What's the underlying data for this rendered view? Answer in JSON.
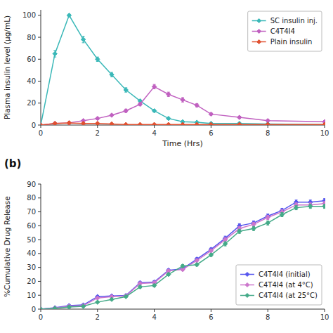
{
  "chart_data": [
    {
      "type": "line",
      "xlabel": "Time (Hrs)",
      "ylabel": "Plasma insulin level (μg/mL)",
      "x": [
        0,
        0.5,
        1.0,
        1.5,
        2.0,
        2.5,
        3.0,
        3.5,
        4.0,
        4.5,
        5.0,
        5.5,
        6.0,
        7.0,
        8.0,
        10.0
      ],
      "series": [
        {
          "name": "SC insulin inj.",
          "color": "#3ab8b8",
          "marker": "diamond",
          "line_style": "solid",
          "values": [
            0,
            65,
            100,
            78,
            60,
            46,
            32,
            22,
            13,
            6,
            3,
            2.5,
            1.5,
            1.5,
            1.0,
            0.5
          ],
          "errors": [
            0,
            3,
            1,
            3,
            2,
            2,
            2,
            1,
            1,
            1,
            0.5,
            0.5,
            0.5,
            0.5,
            0.5,
            0.5
          ]
        },
        {
          "name": "C4T4I4",
          "color": "#c060c0",
          "marker": "diamond",
          "line_style": "solid",
          "values": [
            0,
            1.5,
            2,
            4,
            6,
            9,
            13,
            19,
            35,
            28,
            23,
            18,
            10,
            7,
            4,
            3
          ],
          "errors": [
            0,
            0.5,
            0.5,
            0.5,
            1,
            1,
            1.5,
            1.5,
            2,
            2,
            2,
            1.5,
            1,
            1,
            1,
            0.5
          ]
        },
        {
          "name": "Plain insulin",
          "color": "#e05030",
          "marker": "diamond",
          "line_style": "solid",
          "values": [
            0,
            1.5,
            2,
            1.5,
            1.5,
            1,
            0.5,
            0.5,
            0.5,
            0.5,
            0.5,
            0.5,
            0.5,
            0.5,
            0.5,
            0.5
          ],
          "errors": [
            0,
            0.5,
            0.5,
            0.5,
            0.5,
            0.3,
            0.3,
            0.3,
            0.3,
            0.3,
            0.3,
            0.3,
            0.3,
            0.3,
            0.3,
            0.3
          ]
        }
      ],
      "xlim": [
        0,
        10
      ],
      "ylim": [
        0,
        105
      ],
      "xticks": [
        0,
        2,
        4,
        6,
        8,
        10
      ],
      "yticks": [
        0,
        20,
        40,
        60,
        80,
        100
      ],
      "grid": false,
      "legend": "upper right"
    },
    {
      "type": "line",
      "ylabel": "%Cumulative Drug Release",
      "annotations": [
        "(b)"
      ],
      "x": [
        0,
        0.5,
        1,
        1.5,
        2,
        2.5,
        3,
        3.5,
        4,
        4.5,
        5,
        5.5,
        6,
        6.5,
        7,
        7.5,
        8,
        8.5,
        9,
        9.5,
        10
      ],
      "series": [
        {
          "name": "C4T4I4 (initial)",
          "color": "#5555ee",
          "marker": "diamond",
          "line_style": "solid",
          "values": [
            0,
            1,
            2.5,
            3,
            9,
            9.5,
            9.8,
            19,
            19.5,
            28,
            29,
            36,
            43,
            51,
            60,
            62,
            67,
            71,
            77,
            77,
            78
          ],
          "errors": [
            0,
            0.3,
            0.4,
            0.4,
            0.5,
            0.5,
            0.5,
            1,
            1,
            1,
            1,
            1,
            1,
            1.5,
            1.5,
            1.5,
            1.5,
            1.5,
            1.5,
            1.5,
            1.5
          ]
        },
        {
          "name": "C4T4I4 (at 4°C)",
          "color": "#cc77cc",
          "marker": "diamond",
          "line_style": "solid",
          "values": [
            0,
            0.8,
            2,
            2.5,
            8,
            9,
            9.5,
            18.5,
            19,
            27.5,
            28.5,
            35,
            42,
            50,
            58,
            61,
            66,
            70,
            75,
            75,
            76
          ],
          "errors": [
            0,
            0.3,
            0.4,
            0.4,
            0.5,
            0.5,
            0.5,
            1,
            1,
            1,
            1,
            1,
            1,
            1.5,
            1.5,
            1.5,
            1.5,
            1.5,
            1.5,
            1.5,
            1.5
          ]
        },
        {
          "name": "C4T4I4 (at 25°C)",
          "color": "#44aa88",
          "marker": "diamond",
          "line_style": "solid",
          "values": [
            0,
            0.5,
            1.5,
            2,
            5,
            7,
            9,
            16,
            17,
            25,
            31,
            32,
            39,
            47,
            56,
            58,
            62,
            68,
            73,
            74,
            74
          ],
          "errors": [
            0,
            0.3,
            0.4,
            0.4,
            0.5,
            0.5,
            0.5,
            1,
            1,
            1,
            1,
            1,
            1,
            1.5,
            1.5,
            1.5,
            1.5,
            1.5,
            1.5,
            1.5,
            1.5
          ]
        }
      ],
      "xlim": [
        0,
        10
      ],
      "ylim": [
        0,
        90
      ],
      "xticks": [
        0,
        2,
        4,
        6,
        8,
        10
      ],
      "yticks": [
        0,
        10,
        20,
        30,
        40,
        50,
        60,
        70,
        80,
        90
      ],
      "grid": false,
      "legend": "lower right"
    }
  ]
}
